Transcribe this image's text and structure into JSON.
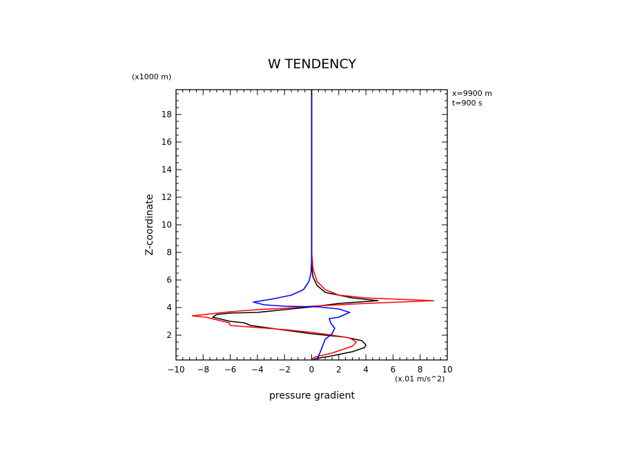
{
  "chart_data": {
    "type": "line",
    "title": "W TENDENCY",
    "xlabel": "pressure gradient",
    "x_units": "(x.01 m/s^2)",
    "ylabel": "Z-coordinate",
    "y_units": "(x1000 m)",
    "annotations": [
      "x=9900 m",
      "t=900 s"
    ],
    "xlim": [
      -10,
      10
    ],
    "ylim": [
      0.2,
      19.8
    ],
    "x_ticks": [
      -10,
      -8,
      -6,
      -4,
      -2,
      0,
      2,
      4,
      6,
      8,
      10
    ],
    "x_tick_labels": [
      "−10",
      "−8",
      "−6",
      "−4",
      "−2",
      "0",
      "2",
      "4",
      "6",
      "8",
      "10"
    ],
    "y_ticks": [
      2,
      4,
      6,
      8,
      10,
      12,
      14,
      16,
      18
    ],
    "y_tick_labels": [
      "2",
      "4",
      "6",
      "8",
      "10",
      "12",
      "14",
      "16",
      "18"
    ],
    "grid": false,
    "series": [
      {
        "color": "#000000",
        "points": [
          [
            0.1,
            0.2
          ],
          [
            0.3,
            0.3
          ],
          [
            1.5,
            0.5
          ],
          [
            3,
            0.8
          ],
          [
            3.9,
            1.1
          ],
          [
            4,
            1.3
          ],
          [
            3.7,
            1.6
          ],
          [
            2.5,
            1.85
          ],
          [
            0,
            2.1
          ],
          [
            -1.5,
            2.3
          ],
          [
            -3,
            2.5
          ],
          [
            -4.5,
            2.7
          ],
          [
            -5,
            2.9
          ],
          [
            -6,
            3.0
          ],
          [
            -7.3,
            3.3
          ],
          [
            -7,
            3.5
          ],
          [
            -6,
            3.6
          ],
          [
            -4,
            3.65
          ],
          [
            -2,
            3.85
          ],
          [
            0,
            4.05
          ],
          [
            2,
            4.3
          ],
          [
            4.9,
            4.5
          ],
          [
            3,
            4.7
          ],
          [
            1,
            5.1
          ],
          [
            0.4,
            5.6
          ],
          [
            0.1,
            6.2
          ],
          [
            0,
            7
          ],
          [
            0,
            19.8
          ]
        ]
      },
      {
        "color": "#ff0000",
        "points": [
          [
            0,
            0.25
          ],
          [
            0.2,
            0.4
          ],
          [
            1.5,
            0.7
          ],
          [
            3,
            1.2
          ],
          [
            3.3,
            1.5
          ],
          [
            2.8,
            1.8
          ],
          [
            1.5,
            2.0
          ],
          [
            0,
            2.2
          ],
          [
            -2,
            2.4
          ],
          [
            -4,
            2.55
          ],
          [
            -6,
            2.7
          ],
          [
            -6.1,
            2.9
          ],
          [
            -7.8,
            3.3
          ],
          [
            -8.8,
            3.4
          ],
          [
            -6,
            3.7
          ],
          [
            -4,
            3.85
          ],
          [
            -2,
            3.95
          ],
          [
            0,
            4.1
          ],
          [
            4,
            4.3
          ],
          [
            9,
            4.5
          ],
          [
            4,
            4.7
          ],
          [
            2,
            4.9
          ],
          [
            1,
            5.3
          ],
          [
            0.4,
            5.9
          ],
          [
            0.1,
            6.8
          ],
          [
            0,
            8
          ],
          [
            0,
            14.5
          ],
          [
            0,
            19.8
          ]
        ]
      },
      {
        "color": "#0000ff",
        "points": [
          [
            0.4,
            0.25
          ],
          [
            0.6,
            0.7
          ],
          [
            0.8,
            1.2
          ],
          [
            1,
            1.7
          ],
          [
            1.5,
            2.1
          ],
          [
            1.7,
            2.5
          ],
          [
            1.4,
            2.9
          ],
          [
            1.3,
            3.2
          ],
          [
            2,
            3.3
          ],
          [
            2.8,
            3.65
          ],
          [
            2,
            3.9
          ],
          [
            0.5,
            4.05
          ],
          [
            -2,
            4.1
          ],
          [
            -3.5,
            4.2
          ],
          [
            -4.3,
            4.4
          ],
          [
            -3,
            4.6
          ],
          [
            -1.5,
            4.9
          ],
          [
            -0.6,
            5.3
          ],
          [
            -0.2,
            5.9
          ],
          [
            -0.05,
            6.5
          ],
          [
            0,
            7.5
          ],
          [
            0,
            19.8
          ]
        ]
      }
    ]
  }
}
